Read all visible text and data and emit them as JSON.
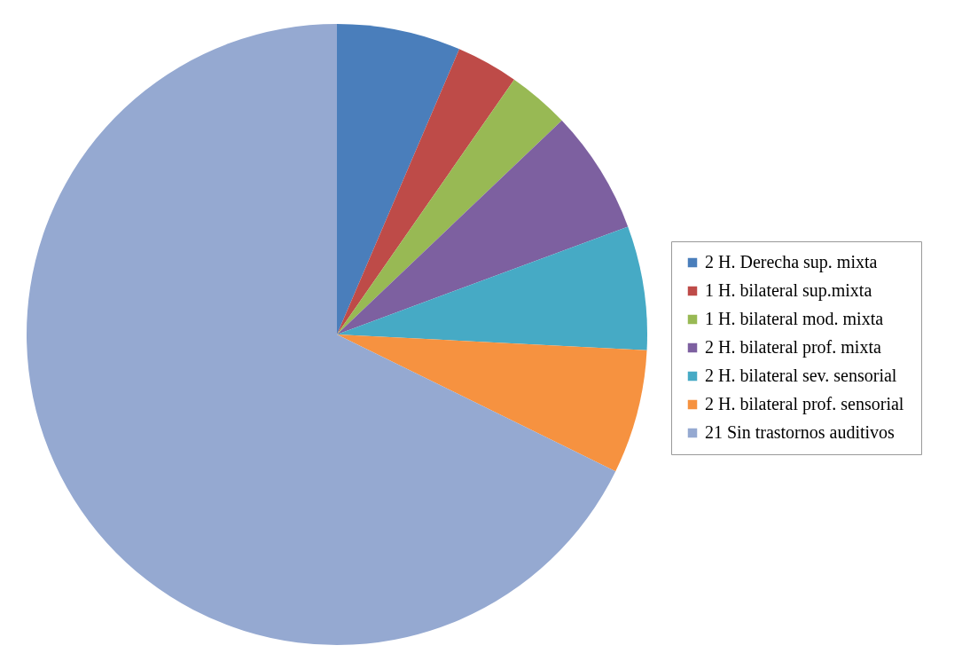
{
  "chart_data": {
    "type": "pie",
    "categories": [
      "2  H. Derecha sup. mixta",
      "1  H. bilateral sup.mixta",
      "1  H. bilateral mod. mixta",
      "2  H. bilateral prof. mixta",
      "2  H. bilateral sev. sensorial",
      "2  H. bilateral prof. sensorial",
      "21  Sin trastornos auditivos"
    ],
    "values": [
      2,
      1,
      1,
      2,
      2,
      2,
      21
    ],
    "colors": [
      "#4a7ebb",
      "#be4b48",
      "#98b954",
      "#7d60a0",
      "#46aac5",
      "#f69240",
      "#95a9d1"
    ],
    "legend": "right"
  }
}
